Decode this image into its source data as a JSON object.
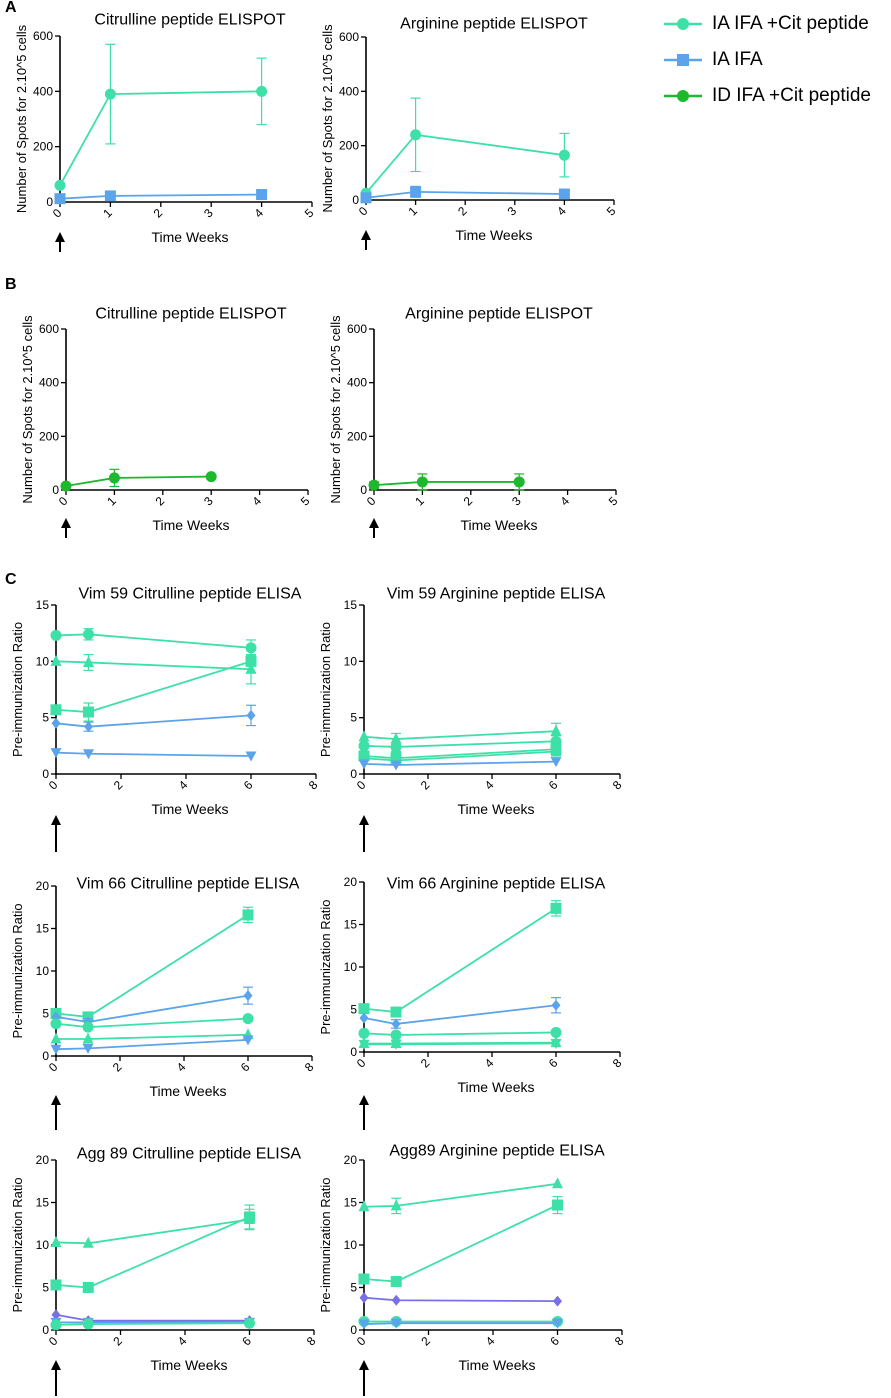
{
  "panels": [
    {
      "letter": "A"
    },
    {
      "letter": "B"
    },
    {
      "letter": "C"
    }
  ],
  "legend": {
    "items": [
      {
        "label": "IA IFA +Cit peptide",
        "color": "#3de0a6",
        "marker": "circle"
      },
      {
        "label": "IA IFA",
        "color": "#5ba3ea",
        "marker": "square"
      },
      {
        "label": "ID IFA +Cit peptide",
        "color": "#1db82e",
        "marker": "circle"
      }
    ]
  },
  "colors": {
    "cit": "#3de0a6",
    "ifa": "#5ba3ea",
    "id": "#1db82e",
    "purple": "#7b6fe6",
    "axis": "#000000"
  },
  "chart_data": [
    {
      "id": "A1",
      "type": "line",
      "title": "Citrulline peptide ELISPOT",
      "xlabel": "Time Weeks",
      "ylabel": "Number of Spots for 2.10^5 cells",
      "xlim": [
        0,
        5
      ],
      "ylim": [
        0,
        600
      ],
      "xticks": [
        0,
        1,
        2,
        3,
        4,
        5
      ],
      "yticks": [
        0,
        200,
        400,
        600
      ],
      "xtick_labels": [
        "0",
        "1",
        "2",
        "3",
        "4",
        "5"
      ],
      "ytick_labels": [
        "0",
        "200",
        "400",
        "600"
      ],
      "series": [
        {
          "name": "IA IFA +Cit peptide",
          "color": "#3de0a6",
          "marker": "circle",
          "x": [
            0,
            1,
            4
          ],
          "y": [
            60,
            390,
            400
          ],
          "err": [
            0,
            180,
            120
          ]
        },
        {
          "name": "IA IFA",
          "color": "#5ba3ea",
          "marker": "square",
          "x": [
            0,
            1,
            4
          ],
          "y": [
            12,
            22,
            27
          ],
          "err": [
            0,
            0,
            0
          ]
        }
      ]
    },
    {
      "id": "A2",
      "type": "line",
      "title": "Arginine peptide ELISPOT",
      "xlabel": "Time Weeks",
      "ylabel": "Number of Spots for 2.10^5 cells",
      "xlim": [
        0,
        5
      ],
      "ylim": [
        0,
        600
      ],
      "xticks": [
        0,
        1,
        2,
        3,
        4,
        5
      ],
      "yticks": [
        0,
        200,
        400,
        600
      ],
      "xtick_labels": [
        "0",
        "1",
        "2",
        "3",
        "4",
        "5"
      ],
      "ytick_labels": [
        "0",
        "200",
        "400",
        "600"
      ],
      "series": [
        {
          "name": "IA IFA +Cit peptide",
          "color": "#3de0a6",
          "marker": "circle",
          "x": [
            0,
            1,
            4
          ],
          "y": [
            25,
            240,
            165
          ],
          "err": [
            0,
            135,
            80
          ]
        },
        {
          "name": "IA IFA",
          "color": "#5ba3ea",
          "marker": "square",
          "x": [
            0,
            1,
            4
          ],
          "y": [
            8,
            30,
            22
          ],
          "err": [
            0,
            20,
            0
          ]
        }
      ]
    },
    {
      "id": "B1",
      "type": "line",
      "title": "Citrulline peptide ELISPOT",
      "xlabel": "Time Weeks",
      "ylabel": "Number of Spots for 2.10^5 cells",
      "xlim": [
        0,
        5
      ],
      "ylim": [
        0,
        600
      ],
      "xticks": [
        0,
        1,
        2,
        3,
        4,
        5
      ],
      "yticks": [
        0,
        200,
        400,
        600
      ],
      "xtick_labels": [
        "0",
        "1",
        "2",
        "3",
        "4",
        "5"
      ],
      "ytick_labels": [
        "0",
        "200",
        "400",
        "600"
      ],
      "series": [
        {
          "name": "ID IFA +Cit peptide",
          "color": "#1db82e",
          "marker": "circle",
          "x": [
            0,
            1,
            3
          ],
          "y": [
            15,
            45,
            50
          ],
          "err": [
            0,
            32,
            0
          ]
        }
      ]
    },
    {
      "id": "B2",
      "type": "line",
      "title": "Arginine peptide ELISPOT",
      "xlabel": "Time Weeks",
      "ylabel": "Number of Spots for 2.10^5 cells",
      "xlim": [
        0,
        5
      ],
      "ylim": [
        0,
        600
      ],
      "xticks": [
        0,
        1,
        2,
        3,
        4,
        5
      ],
      "yticks": [
        0,
        200,
        400,
        600
      ],
      "xtick_labels": [
        "0",
        "1",
        "2",
        "3",
        "4",
        "5"
      ],
      "ytick_labels": [
        "0",
        "200",
        "400",
        "600"
      ],
      "series": [
        {
          "name": "ID IFA +Cit peptide",
          "color": "#1db82e",
          "marker": "circle",
          "x": [
            0,
            1,
            3
          ],
          "y": [
            18,
            30,
            30
          ],
          "err": [
            12,
            30,
            30
          ]
        }
      ]
    },
    {
      "id": "C1",
      "type": "line",
      "title": "Vim 59 Citrulline peptide ELISA",
      "xlabel": "Time Weeks",
      "ylabel": "Pre-immunization Ratio",
      "xlim": [
        0,
        8
      ],
      "ylim": [
        0,
        15
      ],
      "xticks": [
        0,
        2,
        4,
        6,
        8
      ],
      "yticks": [
        0,
        5,
        10,
        15
      ],
      "xtick_labels": [
        "0",
        "2",
        "4",
        "6",
        "8"
      ],
      "ytick_labels": [
        "0",
        "5",
        "10",
        "15"
      ],
      "series": [
        {
          "name": "s1",
          "color": "#3de0a6",
          "marker": "circle",
          "x": [
            0,
            1,
            6
          ],
          "y": [
            12.3,
            12.4,
            11.2
          ],
          "err": [
            0,
            0.5,
            0.7
          ]
        },
        {
          "name": "s2",
          "color": "#3de0a6",
          "marker": "triangle",
          "x": [
            0,
            1,
            6
          ],
          "y": [
            10,
            9.9,
            9.3
          ],
          "err": [
            0,
            0.7,
            1.3
          ]
        },
        {
          "name": "s3",
          "color": "#3de0a6",
          "marker": "square",
          "x": [
            0,
            1,
            6
          ],
          "y": [
            5.7,
            5.5,
            10
          ],
          "err": [
            0,
            0.8,
            1.0
          ]
        },
        {
          "name": "s4",
          "color": "#5ba3ea",
          "marker": "diamond",
          "x": [
            0,
            1,
            6
          ],
          "y": [
            4.5,
            4.2,
            5.2
          ],
          "err": [
            0,
            0.4,
            0.9
          ]
        },
        {
          "name": "s5",
          "color": "#5ba3ea",
          "marker": "triangle-down",
          "x": [
            0,
            1,
            6
          ],
          "y": [
            1.9,
            1.8,
            1.6
          ],
          "err": [
            0,
            0,
            0
          ]
        }
      ]
    },
    {
      "id": "C2",
      "type": "line",
      "title": "Vim 59 Arginine peptide ELISA",
      "xlabel": "Time Weeks",
      "ylabel": "Pre-immunization Ratio",
      "xlim": [
        0,
        8
      ],
      "ylim": [
        0,
        15
      ],
      "xticks": [
        0,
        2,
        4,
        6,
        8
      ],
      "yticks": [
        0,
        5,
        10,
        15
      ],
      "xtick_labels": [
        "0",
        "2",
        "4",
        "6",
        "8"
      ],
      "ytick_labels": [
        "0",
        "5",
        "10",
        "15"
      ],
      "series": [
        {
          "name": "s1",
          "color": "#3de0a6",
          "marker": "triangle",
          "x": [
            0,
            1,
            6
          ],
          "y": [
            3.3,
            3.1,
            3.8
          ],
          "err": [
            0,
            0.5,
            0.7
          ]
        },
        {
          "name": "s2",
          "color": "#3de0a6",
          "marker": "circle",
          "x": [
            0,
            1,
            6
          ],
          "y": [
            2.5,
            2.4,
            2.9
          ],
          "err": [
            0,
            0.4,
            0.5
          ]
        },
        {
          "name": "s3",
          "color": "#3de0a6",
          "marker": "square",
          "x": [
            0,
            1,
            6
          ],
          "y": [
            1.6,
            1.4,
            2.2
          ],
          "err": [
            0,
            0.5,
            0.5
          ]
        },
        {
          "name": "s4",
          "color": "#3de0a6",
          "marker": "diamond",
          "x": [
            0,
            1,
            6
          ],
          "y": [
            1.4,
            1.2,
            2.0
          ],
          "err": [
            0,
            0.3,
            0.4
          ]
        },
        {
          "name": "s5",
          "color": "#5ba3ea",
          "marker": "triangle-down",
          "x": [
            0,
            1,
            6
          ],
          "y": [
            0.9,
            0.8,
            1.1
          ],
          "err": [
            0,
            0,
            0
          ]
        }
      ]
    },
    {
      "id": "C3",
      "type": "line",
      "title": "Vim 66 Citrulline peptide ELISA",
      "xlabel": "Time Weeks",
      "ylabel": "Pre-immunization Ratio",
      "xlim": [
        0,
        8
      ],
      "ylim": [
        0,
        20
      ],
      "xticks": [
        0,
        2,
        4,
        6,
        8
      ],
      "yticks": [
        0,
        5,
        10,
        15,
        20
      ],
      "xtick_labels": [
        "0",
        "2",
        "4",
        "6",
        "8"
      ],
      "ytick_labels": [
        "0",
        "5",
        "10",
        "15",
        "20"
      ],
      "series": [
        {
          "name": "s1",
          "color": "#3de0a6",
          "marker": "square",
          "x": [
            0,
            1,
            6
          ],
          "y": [
            5.0,
            4.6,
            16.6
          ],
          "err": [
            0,
            0.4,
            0.9
          ]
        },
        {
          "name": "s2",
          "color": "#5ba3ea",
          "marker": "diamond",
          "x": [
            0,
            1,
            6
          ],
          "y": [
            4.6,
            4.0,
            7.1
          ],
          "err": [
            0,
            0.4,
            1.0
          ]
        },
        {
          "name": "s3",
          "color": "#3de0a6",
          "marker": "circle",
          "x": [
            0,
            1,
            6
          ],
          "y": [
            3.8,
            3.4,
            4.4
          ],
          "err": [
            0,
            0,
            0
          ]
        },
        {
          "name": "s4",
          "color": "#3de0a6",
          "marker": "triangle",
          "x": [
            0,
            1,
            6
          ],
          "y": [
            2.0,
            2.0,
            2.5
          ],
          "err": [
            0,
            0,
            0
          ]
        },
        {
          "name": "s5",
          "color": "#5ba3ea",
          "marker": "triangle-down",
          "x": [
            0,
            1,
            6
          ],
          "y": [
            0.8,
            0.9,
            1.9
          ],
          "err": [
            0,
            0,
            0
          ]
        }
      ]
    },
    {
      "id": "C4",
      "type": "line",
      "title": "Vim 66 Arginine peptide ELISA",
      "xlabel": "Time Weeks",
      "ylabel": "Pre-immunization Ratio",
      "xlim": [
        0,
        8
      ],
      "ylim": [
        0,
        20
      ],
      "xticks": [
        0,
        2,
        4,
        6,
        8
      ],
      "yticks": [
        0,
        5,
        10,
        15,
        20
      ],
      "xtick_labels": [
        "0",
        "2",
        "4",
        "6",
        "8"
      ],
      "ytick_labels": [
        "0",
        "5",
        "10",
        "15",
        "20"
      ],
      "series": [
        {
          "name": "s1",
          "color": "#3de0a6",
          "marker": "square",
          "x": [
            0,
            1,
            6
          ],
          "y": [
            5.1,
            4.7,
            16.9
          ],
          "err": [
            0,
            0.3,
            0.9
          ]
        },
        {
          "name": "s2",
          "color": "#5ba3ea",
          "marker": "diamond",
          "x": [
            0,
            1,
            6
          ],
          "y": [
            4.0,
            3.3,
            5.5
          ],
          "err": [
            0,
            0.5,
            0.9
          ]
        },
        {
          "name": "s3",
          "color": "#3de0a6",
          "marker": "circle",
          "x": [
            0,
            1,
            6
          ],
          "y": [
            2.2,
            2.0,
            2.3
          ],
          "err": [
            0,
            0,
            0
          ]
        },
        {
          "name": "s4",
          "color": "#3de0a6",
          "marker": "triangle",
          "x": [
            0,
            1,
            6
          ],
          "y": [
            1.0,
            1.0,
            1.1
          ],
          "err": [
            0,
            0.4,
            0
          ]
        },
        {
          "name": "s5",
          "color": "#3de0a6",
          "marker": "triangle-down",
          "x": [
            0,
            1,
            6
          ],
          "y": [
            0.9,
            0.9,
            1.0
          ],
          "err": [
            0,
            0,
            0
          ]
        }
      ]
    },
    {
      "id": "C5",
      "type": "line",
      "title": "Agg 89 Citrulline peptide ELISA",
      "xlabel": "Time Weeks",
      "ylabel": "Pre-immunization Ratio",
      "xlim": [
        0,
        8
      ],
      "ylim": [
        0,
        20
      ],
      "xticks": [
        0,
        2,
        4,
        6,
        8
      ],
      "yticks": [
        0,
        5,
        10,
        15,
        20
      ],
      "xtick_labels": [
        "0",
        "2",
        "4",
        "6",
        "8"
      ],
      "ytick_labels": [
        "0",
        "5",
        "10",
        "15",
        "20"
      ],
      "series": [
        {
          "name": "s1",
          "color": "#3de0a6",
          "marker": "triangle",
          "x": [
            0,
            1,
            6
          ],
          "y": [
            10.3,
            10.2,
            13.0
          ],
          "err": [
            0,
            0,
            1.2
          ]
        },
        {
          "name": "s2",
          "color": "#3de0a6",
          "marker": "square",
          "x": [
            0,
            1,
            6
          ],
          "y": [
            5.3,
            5.0,
            13.3
          ],
          "err": [
            0,
            0.5,
            1.4
          ]
        },
        {
          "name": "s3",
          "color": "#7b6fe6",
          "marker": "diamond",
          "x": [
            0,
            1,
            6
          ],
          "y": [
            1.8,
            1.1,
            1.1
          ],
          "err": [
            0,
            0,
            0
          ]
        },
        {
          "name": "s4",
          "color": "#5ba3ea",
          "marker": "triangle-down",
          "x": [
            0,
            1,
            6
          ],
          "y": [
            0.9,
            0.9,
            0.9
          ],
          "err": [
            0,
            0,
            0
          ]
        },
        {
          "name": "s5",
          "color": "#3de0a6",
          "marker": "circle",
          "x": [
            0,
            1,
            6
          ],
          "y": [
            0.6,
            0.7,
            0.8
          ],
          "err": [
            0,
            0,
            0
          ]
        }
      ]
    },
    {
      "id": "C6",
      "type": "line",
      "title": "Agg89 Arginine peptide ELISA",
      "xlabel": "Time Weeks",
      "ylabel": "Pre-immunization Ratio",
      "xlim": [
        0,
        8
      ],
      "ylim": [
        0,
        20
      ],
      "xticks": [
        0,
        2,
        4,
        6,
        8
      ],
      "yticks": [
        0,
        5,
        10,
        15,
        20
      ],
      "xtick_labels": [
        "0",
        "2",
        "4",
        "6",
        "8"
      ],
      "ytick_labels": [
        "0",
        "5",
        "10",
        "15",
        "20"
      ],
      "series": [
        {
          "name": "s1",
          "color": "#3de0a6",
          "marker": "triangle",
          "x": [
            0,
            1,
            6
          ],
          "y": [
            14.5,
            14.6,
            17.2
          ],
          "err": [
            0,
            0.9,
            0
          ]
        },
        {
          "name": "s2",
          "color": "#3de0a6",
          "marker": "square",
          "x": [
            0,
            1,
            6
          ],
          "y": [
            6.0,
            5.7,
            14.7
          ],
          "err": [
            0,
            0,
            1.0
          ]
        },
        {
          "name": "s3",
          "color": "#7b6fe6",
          "marker": "diamond",
          "x": [
            0,
            1,
            6
          ],
          "y": [
            3.8,
            3.5,
            3.4
          ],
          "err": [
            0,
            0,
            0
          ]
        },
        {
          "name": "s4",
          "color": "#3de0a6",
          "marker": "circle",
          "x": [
            0,
            1,
            6
          ],
          "y": [
            1.0,
            1.0,
            1.0
          ],
          "err": [
            0,
            0,
            0
          ]
        },
        {
          "name": "s5",
          "color": "#5ba3ea",
          "marker": "triangle-down",
          "x": [
            0,
            1,
            6
          ],
          "y": [
            0.7,
            0.8,
            0.8
          ],
          "err": [
            0,
            0,
            0
          ]
        }
      ]
    }
  ]
}
